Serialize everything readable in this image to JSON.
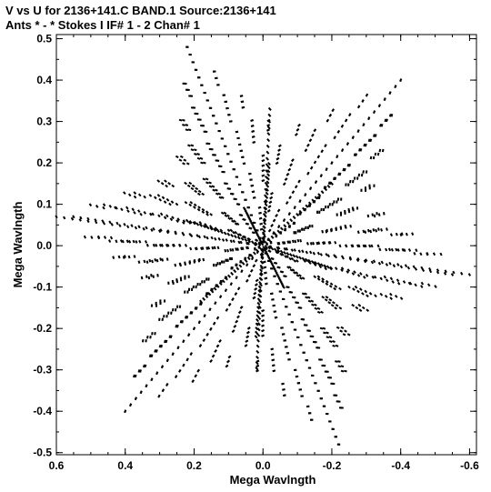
{
  "header": {
    "line1": "V vs U for 2136+141.C BAND.1   Source:2136+141",
    "line2": "Ants * - *     Stokes I   IF# 1 - 2   Chan# 1"
  },
  "chart_data": {
    "type": "scatter",
    "title": "V vs U for 2136+141.C BAND.1   Source:2136+141",
    "subtitle": "Ants * - *     Stokes I   IF# 1 - 2   Chan# 1",
    "xlabel": "Mega Wavlngth",
    "ylabel": "Mega Wavlngth",
    "x_reversed": true,
    "xlim": [
      0.6,
      -0.62
    ],
    "ylim": [
      -0.505,
      0.51
    ],
    "x_ticks": [
      0.6,
      0.4,
      0.2,
      0.0,
      -0.2,
      -0.4,
      -0.6
    ],
    "x_tick_labels": [
      "0.6",
      "0.4",
      "0.2",
      "0.0",
      "-0.2",
      "-0.4",
      "-0.6"
    ],
    "y_ticks": [
      0.5,
      0.4,
      0.3,
      0.2,
      0.1,
      0.0,
      -0.1,
      -0.2,
      -0.3,
      -0.4,
      -0.5
    ],
    "y_tick_labels": [
      "0.5",
      "0.4",
      "0.3",
      "0.2",
      "0.1",
      "0.0",
      "-0.1",
      "-0.2",
      "-0.3",
      "-0.4",
      "-0.5"
    ],
    "grid": false,
    "marker_color": "#000000",
    "description_coverage": {
      "arms": [
        {
          "u": 0.55,
          "v": 0.07
        },
        {
          "u": 0.22,
          "v": 0.48
        },
        {
          "u": -0.4,
          "v": 0.4
        },
        {
          "u": -0.6,
          "v": -0.07
        },
        {
          "u": -0.22,
          "v": -0.48
        },
        {
          "u": 0.4,
          "v": -0.4
        }
      ]
    }
  }
}
